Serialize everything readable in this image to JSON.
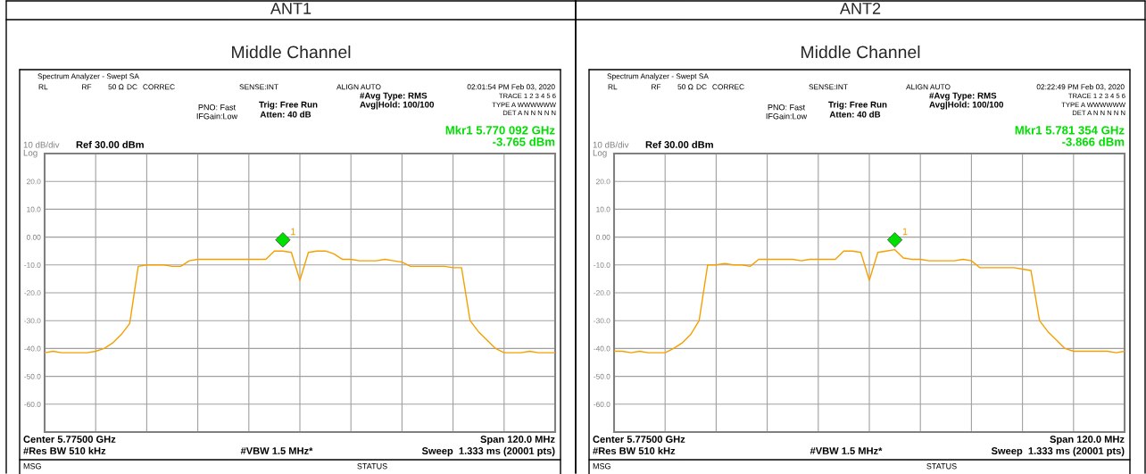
{
  "chart_data": [
    {
      "type": "line",
      "title": "ANT1",
      "subtitle": "Middle Channel",
      "categories": [
        null,
        null,
        null,
        null,
        null,
        null,
        null,
        null,
        null,
        null,
        null,
        null,
        null,
        null,
        null,
        null,
        null,
        null,
        null,
        null,
        null,
        null,
        null,
        null,
        null,
        null,
        null,
        null,
        null,
        null,
        null,
        null,
        null,
        null,
        null,
        null,
        null,
        null,
        null,
        null,
        null,
        null,
        null,
        null,
        null,
        null,
        null,
        null,
        null,
        null,
        null,
        null,
        null,
        null,
        null,
        null,
        null,
        null,
        null,
        null,
        null
      ],
      "series": [
        {
          "color": "#f5a000",
          "values": [
            -41.5,
            -41,
            -41.5,
            -41.5,
            -41.5,
            -41.5,
            -41,
            -40,
            -38,
            -35,
            -31,
            -10.5,
            -10,
            -10,
            -10,
            -10.5,
            -10.5,
            -8.5,
            -8,
            -8,
            -8,
            -8,
            -8,
            -8,
            -8,
            -8,
            -8,
            -5,
            -5,
            -5.5,
            -15.5,
            -5.5,
            -5,
            -5,
            -6,
            -8,
            -8,
            -8.5,
            -8.5,
            -8.5,
            -8,
            -8.5,
            -9,
            -10.5,
            -10.5,
            -10.5,
            -10.5,
            -10.5,
            -11,
            -11,
            -30,
            -34,
            -37,
            -40,
            -41.5,
            -41.5,
            -41.5,
            -41,
            -41.5,
            -41.5,
            -41.5
          ]
        },
        {
          "type": "scatter",
          "color": "#00e000",
          "marker": "diamond",
          "values": [
            null,
            null,
            null,
            null,
            null,
            null,
            null,
            null,
            null,
            null,
            null,
            null,
            null,
            null,
            null,
            null,
            null,
            null,
            null,
            null,
            null,
            null,
            null,
            null,
            null,
            null,
            null,
            null,
            -1,
            null,
            null,
            null,
            null,
            null,
            null,
            null,
            null,
            null,
            null,
            null,
            null,
            null,
            null,
            null,
            null,
            null,
            null,
            null,
            null,
            null,
            null,
            null,
            null,
            null,
            null,
            null,
            null,
            null,
            null,
            null,
            null
          ]
        }
      ],
      "ylim": [
        -70,
        30
      ],
      "yticks": [
        {
          "value": 20,
          "label": "20.0"
        },
        {
          "value": 10,
          "label": "10.0"
        },
        {
          "value": 0,
          "label": "0.00"
        },
        {
          "value": -10,
          "label": "-10.0"
        },
        {
          "value": -20,
          "label": "-20.0"
        },
        {
          "value": -30,
          "label": "-30.0"
        },
        {
          "value": -40,
          "label": "-40.0"
        },
        {
          "value": -50,
          "label": "-50.0"
        },
        {
          "value": -60,
          "label": "-60.0"
        }
      ],
      "grid": true,
      "tick_labels": "y",
      "annotations": [
        "Spectrum Analyzer - Swept SA",
        "RL",
        "RF",
        "50 Ω",
        "DC",
        "CORREC",
        "SENSE:INT",
        "ALIGN AUTO",
        "02:01:54 PM Feb 03, 2020",
        "PNO: Fast",
        "IFGain:Low",
        "Trig: Free Run",
        "Atten: 40 dB",
        "#Avg Type: RMS",
        "Avg|Hold: 100/100",
        "TRACE 1 2 3 4 5 6",
        "TYPE A WWWWWW",
        "DET A N N N N N",
        "Mkr1 5.770 092 GHz",
        "-3.765 dBm",
        "10 dB/div",
        "Ref 30.00 dBm",
        "Log",
        "Center 5.77500 GHz",
        "#Res BW 510 kHz",
        "#VBW 1.5 MHz*",
        "Span 120.0 MHz",
        "Sweep  1.333 ms (20001 pts)",
        "MSG",
        "STATUS",
        "1"
      ]
    },
    {
      "type": "line",
      "title": "ANT2",
      "subtitle": "Middle Channel",
      "categories": [
        null,
        null,
        null,
        null,
        null,
        null,
        null,
        null,
        null,
        null,
        null,
        null,
        null,
        null,
        null,
        null,
        null,
        null,
        null,
        null,
        null,
        null,
        null,
        null,
        null,
        null,
        null,
        null,
        null,
        null,
        null,
        null,
        null,
        null,
        null,
        null,
        null,
        null,
        null,
        null,
        null,
        null,
        null,
        null,
        null,
        null,
        null,
        null,
        null,
        null,
        null,
        null,
        null,
        null,
        null,
        null,
        null,
        null,
        null,
        null,
        null
      ],
      "series": [
        {
          "color": "#f5a000",
          "values": [
            -41,
            -41,
            -41.5,
            -41,
            -41.5,
            -41.5,
            -41.5,
            -40,
            -38,
            -35,
            -30,
            -10,
            -10,
            -9.5,
            -10,
            -10,
            -10.5,
            -8,
            -8,
            -8,
            -8,
            -8,
            -8.5,
            -8,
            -8,
            -8,
            -8,
            -5,
            -5,
            -5.5,
            -15.5,
            -5.5,
            -5,
            -4.5,
            -7.5,
            -8,
            -8,
            -8.5,
            -8.5,
            -8.5,
            -8.5,
            -8,
            -8.5,
            -11,
            -11,
            -11,
            -11,
            -11,
            -11.5,
            -12,
            -30,
            -34,
            -37,
            -40,
            -41,
            -41,
            -41,
            -41,
            -41,
            -41.5,
            -41
          ]
        },
        {
          "type": "scatter",
          "color": "#00e000",
          "marker": "diamond",
          "values": [
            null,
            null,
            null,
            null,
            null,
            null,
            null,
            null,
            null,
            null,
            null,
            null,
            null,
            null,
            null,
            null,
            null,
            null,
            null,
            null,
            null,
            null,
            null,
            null,
            null,
            null,
            null,
            null,
            null,
            null,
            null,
            null,
            null,
            -1,
            null,
            null,
            null,
            null,
            null,
            null,
            null,
            null,
            null,
            null,
            null,
            null,
            null,
            null,
            null,
            null,
            null,
            null,
            null,
            null,
            null,
            null,
            null,
            null,
            null,
            null,
            null
          ]
        }
      ],
      "ylim": [
        -70,
        30
      ],
      "yticks": [
        {
          "value": 20,
          "label": "20.0"
        },
        {
          "value": 10,
          "label": "10.0"
        },
        {
          "value": 0,
          "label": "0.00"
        },
        {
          "value": -10,
          "label": "-10.0"
        },
        {
          "value": -20,
          "label": "-20.0"
        },
        {
          "value": -30,
          "label": "-30.0"
        },
        {
          "value": -40,
          "label": "-40.0"
        },
        {
          "value": -50,
          "label": "-50.0"
        },
        {
          "value": -60,
          "label": "-60.0"
        }
      ],
      "grid": true,
      "tick_labels": "y",
      "annotations": [
        "Spectrum Analyzer - Swept SA",
        "RL",
        "RF",
        "50 Ω",
        "DC",
        "CORREC",
        "SENSE:INT",
        "ALIGN AUTO",
        "02:22:49 PM Feb 03, 2020",
        "PNO: Fast",
        "IFGain:Low",
        "Trig: Free Run",
        "Atten: 40 dB",
        "#Avg Type: RMS",
        "Avg|Hold: 100/100",
        "TRACE 1 2 3 4 5 6",
        "TYPE A WWWWWW",
        "DET A N N N N N",
        "Mkr1 5.781 354 GHz",
        "-3.866 dBm",
        "10 dB/div",
        "Ref 30.00 dBm",
        "Log",
        "Center 5.77500 GHz",
        "#Res BW 510 kHz",
        "#VBW 1.5 MHz*",
        "Span 120.0 MHz",
        "Sweep  1.333 ms (20001 pts)",
        "MSG",
        "STATUS",
        "1"
      ]
    }
  ]
}
